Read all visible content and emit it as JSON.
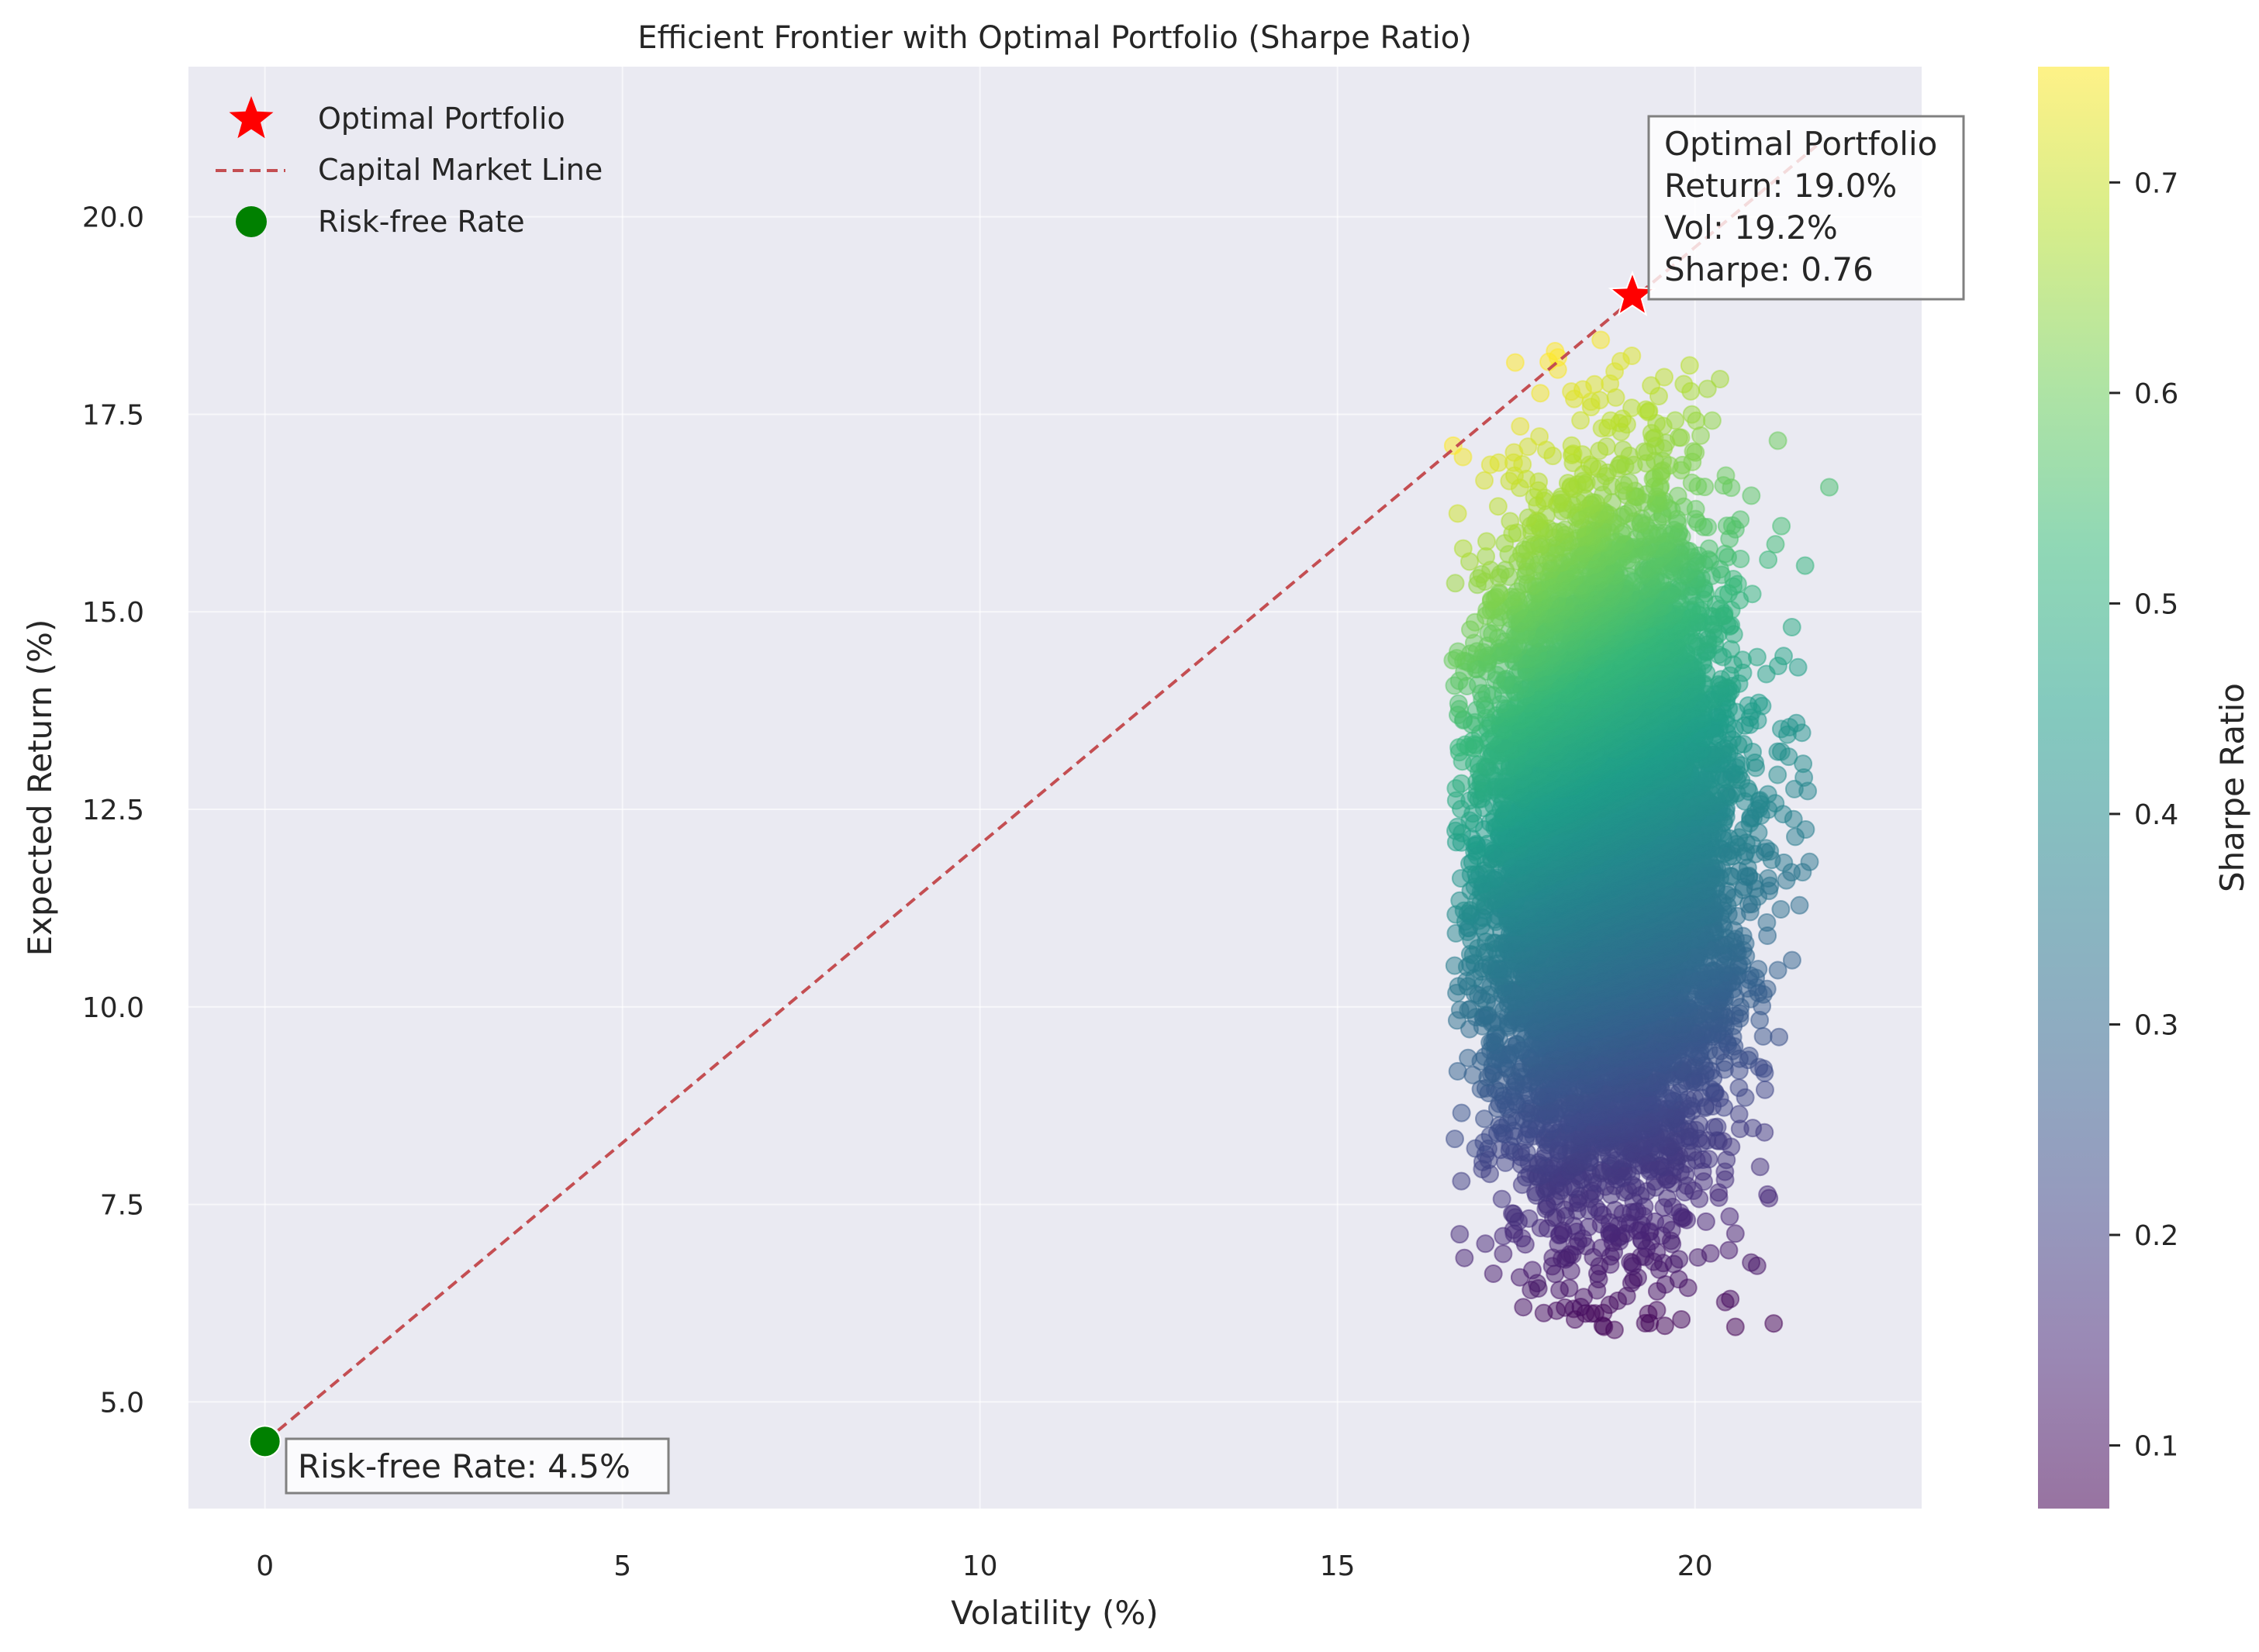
{
  "chart_data": {
    "type": "scatter",
    "title": "Efficient Frontier with Optimal Portfolio (Sharpe Ratio)",
    "xlabel": "Volatility (%)",
    "ylabel": "Expected Return (%)",
    "xlim": [
      -1.07,
      23.17
    ],
    "ylim": [
      3.65,
      21.9
    ],
    "xticks": [
      0,
      5,
      10,
      15,
      20
    ],
    "yticks": [
      5.0,
      7.5,
      10.0,
      12.5,
      15.0,
      17.5,
      20.0
    ],
    "grid": true,
    "legend_position": "upper-left",
    "colorbar": {
      "label": "Sharpe Ratio",
      "range": [
        0.07,
        0.755
      ],
      "ticks": [
        0.1,
        0.2,
        0.3,
        0.4,
        0.5,
        0.6,
        0.7
      ],
      "colormap": "viridis"
    },
    "legend": [
      {
        "label": "Optimal Portfolio",
        "marker": "star",
        "color": "#ff0000"
      },
      {
        "label": "Capital Market Line",
        "marker": "dashed-line",
        "color": "#c44e52"
      },
      {
        "label": "Risk-free Rate",
        "marker": "circle",
        "color": "#008000"
      }
    ],
    "risk_free_rate": 4.5,
    "optimal_portfolio": {
      "volatility": 19.2,
      "return": 19.0,
      "sharpe": 0.76
    },
    "capital_market_line": {
      "x": [
        0,
        21.7
      ],
      "y": [
        4.5,
        20.9
      ]
    },
    "annotations": {
      "optimal": [
        "Optimal Portfolio",
        "Return: 19.0%",
        "Vol: 19.2%",
        "Sharpe: 0.76"
      ],
      "risk_free": "Risk-free Rate: 4.5%"
    },
    "random_portfolios": {
      "count": 10000,
      "volatility_mean": 18.8,
      "volatility_sd": 0.85,
      "return_mean": 12.0,
      "return_sd": 2.1,
      "return_range": [
        5.9,
        18.5
      ],
      "volatility_range": [
        16.6,
        22.2
      ],
      "sharpe_range": [
        0.07,
        0.755
      ]
    }
  }
}
